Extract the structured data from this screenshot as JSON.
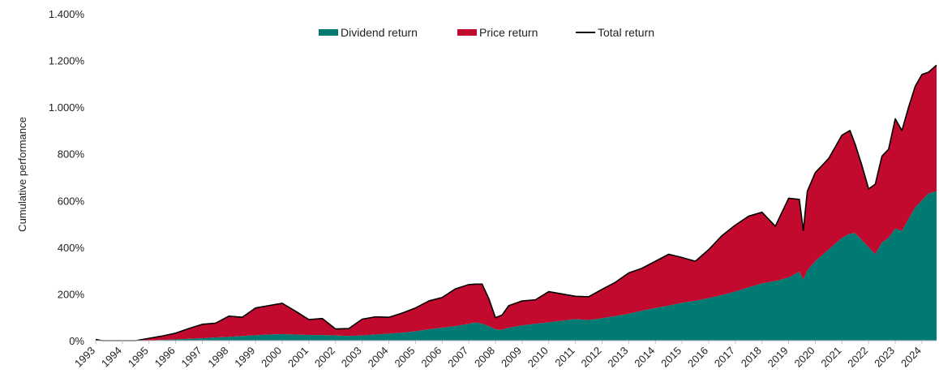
{
  "chart_data": {
    "type": "area",
    "title": "",
    "xlabel": "",
    "ylabel": "Cumulative performance",
    "ylim": [
      0,
      1400
    ],
    "y_ticks": [
      0,
      200,
      400,
      600,
      800,
      1000,
      1200,
      1400
    ],
    "y_tick_labels": [
      "0%",
      "200%",
      "400%",
      "600%",
      "800%",
      "1.000%",
      "1.200%",
      "1.400%"
    ],
    "x_tick_labels": [
      "1993",
      "1994",
      "1995",
      "1996",
      "1997",
      "1998",
      "1999",
      "2000",
      "2001",
      "2002",
      "2003",
      "2004",
      "2005",
      "2006",
      "2007",
      "2008",
      "2009",
      "2010",
      "2011",
      "2012",
      "2013",
      "2014",
      "2015",
      "2016",
      "2017",
      "2018",
      "2019",
      "2020",
      "2021",
      "2022",
      "2023",
      "2024"
    ],
    "xlim": [
      1993.0,
      2024.55
    ],
    "grid": false,
    "legend_position": "top-center",
    "colors": {
      "dividend": "#007a73",
      "price": "#c20a2e",
      "total": "#000000"
    },
    "series": [
      {
        "name": "Dividend return",
        "kind": "area",
        "x": [
          1993.0,
          1993.25,
          1993.5,
          1994.0,
          1994.5,
          1995.0,
          1995.5,
          1996.0,
          1996.5,
          1997.0,
          1997.5,
          1998.0,
          1998.5,
          1999.0,
          1999.5,
          2000.0,
          2000.5,
          2001.0,
          2001.5,
          2002.0,
          2002.5,
          2003.0,
          2003.5,
          2004.0,
          2004.5,
          2005.0,
          2005.5,
          2006.0,
          2006.5,
          2007.0,
          2007.25,
          2007.5,
          2007.75,
          2008.0,
          2008.25,
          2008.5,
          2009.0,
          2009.5,
          2010.0,
          2010.5,
          2011.0,
          2011.5,
          2012.0,
          2012.5,
          2013.0,
          2013.5,
          2014.0,
          2014.5,
          2015.0,
          2015.5,
          2016.0,
          2016.5,
          2017.0,
          2017.5,
          2018.0,
          2018.5,
          2019.0,
          2019.4,
          2019.55,
          2019.7,
          2020.0,
          2020.5,
          2021.0,
          2021.3,
          2021.5,
          2021.75,
          2022.0,
          2022.25,
          2022.5,
          2022.75,
          2023.0,
          2023.25,
          2023.5,
          2023.75,
          2024.0,
          2024.25,
          2024.55
        ],
        "values": [
          0,
          0,
          0,
          0,
          0,
          1,
          3,
          5,
          8,
          10,
          14,
          16,
          20,
          23,
          26,
          28,
          26,
          24,
          24,
          22,
          20,
          22,
          26,
          30,
          34,
          40,
          48,
          55,
          62,
          72,
          78,
          72,
          62,
          48,
          46,
          55,
          65,
          72,
          78,
          85,
          92,
          88,
          96,
          105,
          115,
          128,
          140,
          150,
          162,
          170,
          182,
          195,
          210,
          228,
          245,
          255,
          270,
          295,
          262,
          300,
          340,
          390,
          440,
          458,
          460,
          430,
          400,
          370,
          420,
          440,
          480,
          470,
          520,
          570,
          600,
          630,
          640
        ]
      },
      {
        "name": "Price return",
        "kind": "area",
        "x": [
          1993.0,
          1993.25,
          1993.5,
          1994.0,
          1994.5,
          1995.0,
          1995.5,
          1996.0,
          1996.5,
          1997.0,
          1997.5,
          1998.0,
          1998.5,
          1999.0,
          1999.5,
          2000.0,
          2000.5,
          2001.0,
          2001.5,
          2002.0,
          2002.5,
          2003.0,
          2003.5,
          2004.0,
          2004.5,
          2005.0,
          2005.5,
          2006.0,
          2006.5,
          2007.0,
          2007.25,
          2007.5,
          2007.75,
          2008.0,
          2008.25,
          2008.5,
          2009.0,
          2009.5,
          2010.0,
          2010.5,
          2011.0,
          2011.5,
          2012.0,
          2012.5,
          2013.0,
          2013.5,
          2014.0,
          2014.5,
          2015.0,
          2015.5,
          2016.0,
          2016.5,
          2017.0,
          2017.5,
          2018.0,
          2018.5,
          2019.0,
          2019.4,
          2019.55,
          2019.7,
          2020.0,
          2020.5,
          2021.0,
          2021.3,
          2021.5,
          2021.75,
          2022.0,
          2022.25,
          2022.5,
          2022.75,
          2023.0,
          2023.25,
          2023.5,
          2023.75,
          2024.0,
          2024.25,
          2024.55
        ],
        "values": [
          5,
          0,
          0,
          0,
          0,
          9,
          17,
          27,
          44,
          60,
          61,
          89,
          80,
          117,
          124,
          132,
          100,
          66,
          71,
          28,
          32,
          70,
          76,
          70,
          84,
          100,
          122,
          130,
          160,
          168,
          164,
          170,
          118,
          50,
          64,
          95,
          105,
          103,
          132,
          115,
          98,
          100,
          124,
          145,
          175,
          182,
          200,
          220,
          194,
          170,
          208,
          255,
          285,
          305,
          305,
          235,
          340,
          310,
          210,
          340,
          380,
          390,
          440,
          442,
          380,
          320,
          250,
          300,
          370,
          380,
          470,
          430,
          480,
          520,
          540,
          520,
          540
        ]
      },
      {
        "name": "Total return",
        "kind": "line",
        "x": [
          1993.0,
          1993.25,
          1993.5,
          1994.0,
          1994.5,
          1995.0,
          1995.5,
          1996.0,
          1996.5,
          1997.0,
          1997.5,
          1998.0,
          1998.5,
          1999.0,
          1999.5,
          2000.0,
          2000.5,
          2001.0,
          2001.5,
          2002.0,
          2002.5,
          2003.0,
          2003.5,
          2004.0,
          2004.5,
          2005.0,
          2005.5,
          2006.0,
          2006.5,
          2007.0,
          2007.25,
          2007.5,
          2007.75,
          2008.0,
          2008.25,
          2008.5,
          2009.0,
          2009.5,
          2010.0,
          2010.5,
          2011.0,
          2011.5,
          2012.0,
          2012.5,
          2013.0,
          2013.5,
          2014.0,
          2014.5,
          2015.0,
          2015.5,
          2016.0,
          2016.5,
          2017.0,
          2017.5,
          2018.0,
          2018.5,
          2019.0,
          2019.4,
          2019.55,
          2019.7,
          2020.0,
          2020.5,
          2021.0,
          2021.3,
          2021.5,
          2021.75,
          2022.0,
          2022.25,
          2022.5,
          2022.75,
          2023.0,
          2023.25,
          2023.5,
          2023.75,
          2024.0,
          2024.25,
          2024.55
        ],
        "values": [
          5,
          0,
          0,
          0,
          0,
          10,
          20,
          32,
          52,
          70,
          75,
          105,
          100,
          140,
          150,
          160,
          126,
          90,
          95,
          50,
          52,
          92,
          102,
          100,
          118,
          140,
          170,
          185,
          222,
          240,
          242,
          242,
          180,
          98,
          110,
          150,
          170,
          175,
          210,
          200,
          190,
          188,
          220,
          250,
          290,
          310,
          340,
          370,
          356,
          340,
          390,
          450,
          495,
          533,
          550,
          490,
          610,
          605,
          472,
          640,
          720,
          780,
          880,
          900,
          840,
          750,
          650,
          670,
          790,
          820,
          950,
          900,
          1000,
          1090,
          1140,
          1150,
          1180
        ]
      }
    ]
  }
}
